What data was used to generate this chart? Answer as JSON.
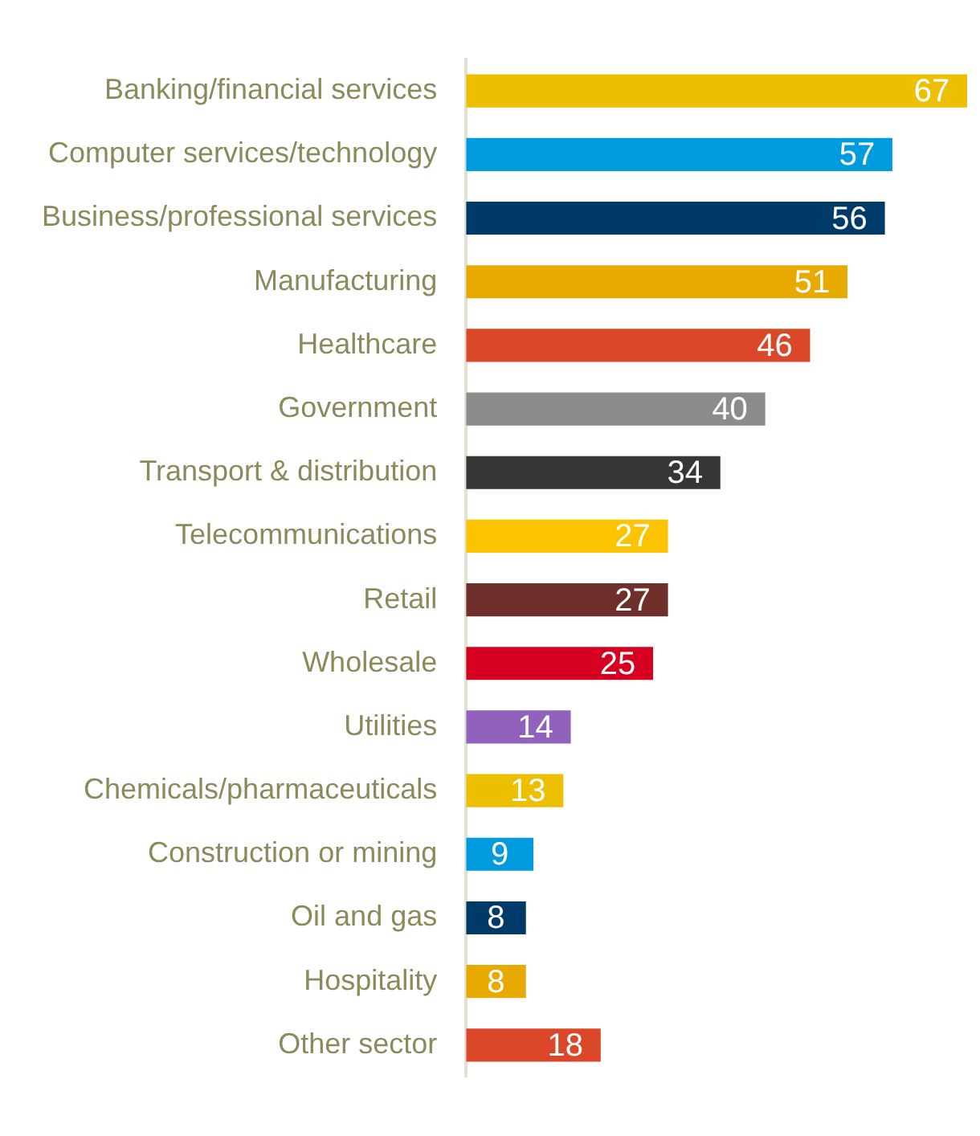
{
  "chart_data": {
    "type": "bar",
    "orientation": "horizontal",
    "categories": [
      "Banking/financial services",
      "Computer services/technology",
      "Business/professional services",
      "Manufacturing",
      "Healthcare",
      "Government",
      "Transport & distribution",
      "Telecommunications",
      "Retail",
      "Wholesale",
      "Utilities",
      "Chemicals/pharmaceuticals",
      "Construction or mining",
      "Oil and gas",
      "Hospitality",
      "Other sector"
    ],
    "values": [
      67,
      57,
      56,
      51,
      46,
      40,
      34,
      27,
      27,
      25,
      14,
      13,
      9,
      8,
      8,
      18
    ],
    "colors": [
      "#ecc000",
      "#009ade",
      "#003a69",
      "#e8aa00",
      "#db4829",
      "#8c8c8c",
      "#373535",
      "#fbc300",
      "#6f2f2b",
      "#d60021",
      "#9162bc",
      "#ecc000",
      "#009ade",
      "#003a69",
      "#e8aa00",
      "#db4829"
    ],
    "data_labels": true,
    "grid": false
  }
}
